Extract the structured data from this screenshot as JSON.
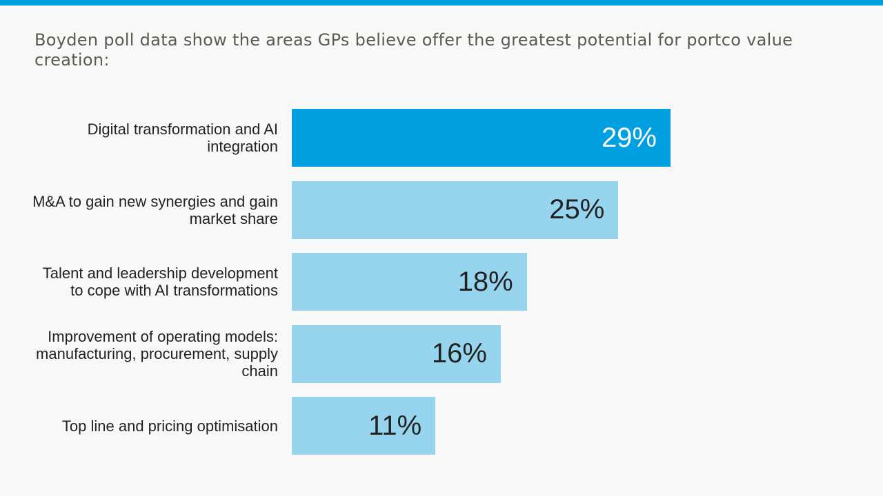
{
  "chart_data": {
    "type": "bar",
    "orientation": "horizontal",
    "title": "Boyden poll data show the areas GPs believe offer the greatest potential for portco value creation:",
    "categories": [
      "Digital transformation and AI integration",
      "M&A to gain new synergies and gain market share",
      "Talent and leadership development to cope with AI transformations",
      "Improvement of operating models: manufacturing, procurement, supply chain",
      "Top line and pricing optimisation"
    ],
    "values": [
      29,
      25,
      18,
      16,
      11
    ],
    "value_labels": [
      "29%",
      "25%",
      "18%",
      "16%",
      "11%"
    ],
    "colors": [
      "#009fe0",
      "#97d5ee",
      "#97d5ee",
      "#97d5ee",
      "#97d5ee"
    ],
    "value_label_colors": [
      "#ffffff",
      "#222222",
      "#222222",
      "#222222",
      "#222222"
    ]
  }
}
